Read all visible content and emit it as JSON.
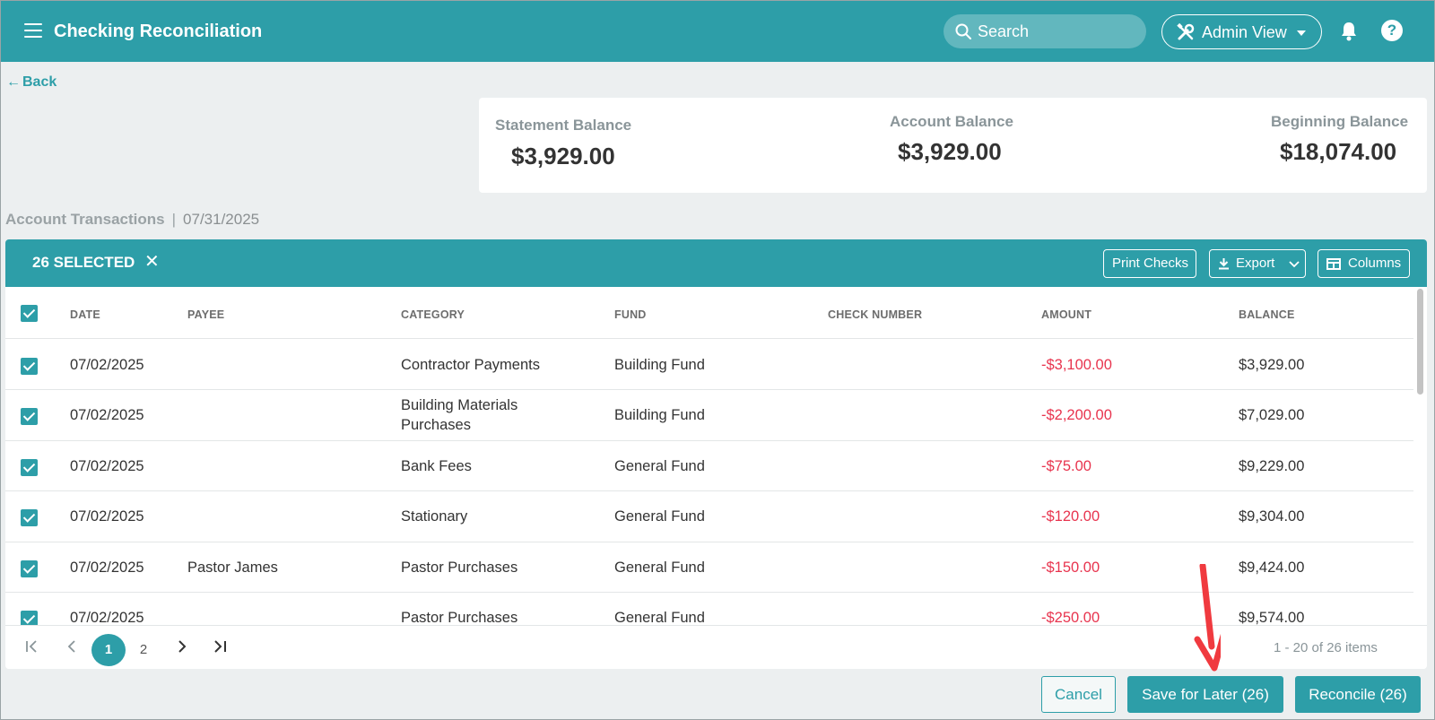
{
  "header": {
    "title": "Checking Reconciliation",
    "search_placeholder": "Search",
    "admin_view_label": "Admin View"
  },
  "nav": {
    "back_label": "Back"
  },
  "balances": {
    "statement": {
      "label": "Statement Balance",
      "value": "$3,929.00"
    },
    "account": {
      "label": "Account Balance",
      "value": "$3,929.00"
    },
    "beginning": {
      "label": "Beginning Balance",
      "value": "$18,074.00"
    }
  },
  "section": {
    "title": "Account Transactions",
    "separator": "|",
    "date": "07/31/2025"
  },
  "toolbar": {
    "selected_label": "26 SELECTED",
    "print_checks_label": "Print Checks",
    "export_label": "Export",
    "columns_label": "Columns"
  },
  "table": {
    "columns": [
      "DATE",
      "PAYEE",
      "CATEGORY",
      "FUND",
      "CHECK NUMBER",
      "AMOUNT",
      "BALANCE"
    ],
    "rows": [
      {
        "date": "07/02/2025",
        "payee": "",
        "category": "Contractor Payments",
        "category2": "",
        "fund": "Building Fund",
        "check_number": "",
        "amount": "-$3,100.00",
        "balance": "$3,929.00"
      },
      {
        "date": "07/02/2025",
        "payee": "",
        "category": "Building Materials",
        "category2": "Purchases",
        "fund": "Building Fund",
        "check_number": "",
        "amount": "-$2,200.00",
        "balance": "$7,029.00"
      },
      {
        "date": "07/02/2025",
        "payee": "",
        "category": "Bank Fees",
        "category2": "",
        "fund": "General Fund",
        "check_number": "",
        "amount": "-$75.00",
        "balance": "$9,229.00"
      },
      {
        "date": "07/02/2025",
        "payee": "",
        "category": "Stationary",
        "category2": "",
        "fund": "General Fund",
        "check_number": "",
        "amount": "-$120.00",
        "balance": "$9,304.00"
      },
      {
        "date": "07/02/2025",
        "payee": "Pastor James",
        "category": "Pastor Purchases",
        "category2": "",
        "fund": "General Fund",
        "check_number": "",
        "amount": "-$150.00",
        "balance": "$9,424.00"
      },
      {
        "date": "07/02/2025",
        "payee": "",
        "category": "Pastor Purchases",
        "category2": "",
        "fund": "General Fund",
        "check_number": "",
        "amount": "-$250.00",
        "balance": "$9,574.00"
      }
    ]
  },
  "pager": {
    "pages": [
      "1",
      "2"
    ],
    "current_page": "1",
    "info": "1 - 20 of 26 items"
  },
  "footer": {
    "cancel_label": "Cancel",
    "save_label": "Save for Later (26)",
    "reconcile_label": "Reconcile (26)"
  },
  "colors": {
    "primary": "#2d9ea8",
    "negative_amount": "#e8344e",
    "background": "#eceff0",
    "annotation_arrow": "#f03a3f"
  }
}
